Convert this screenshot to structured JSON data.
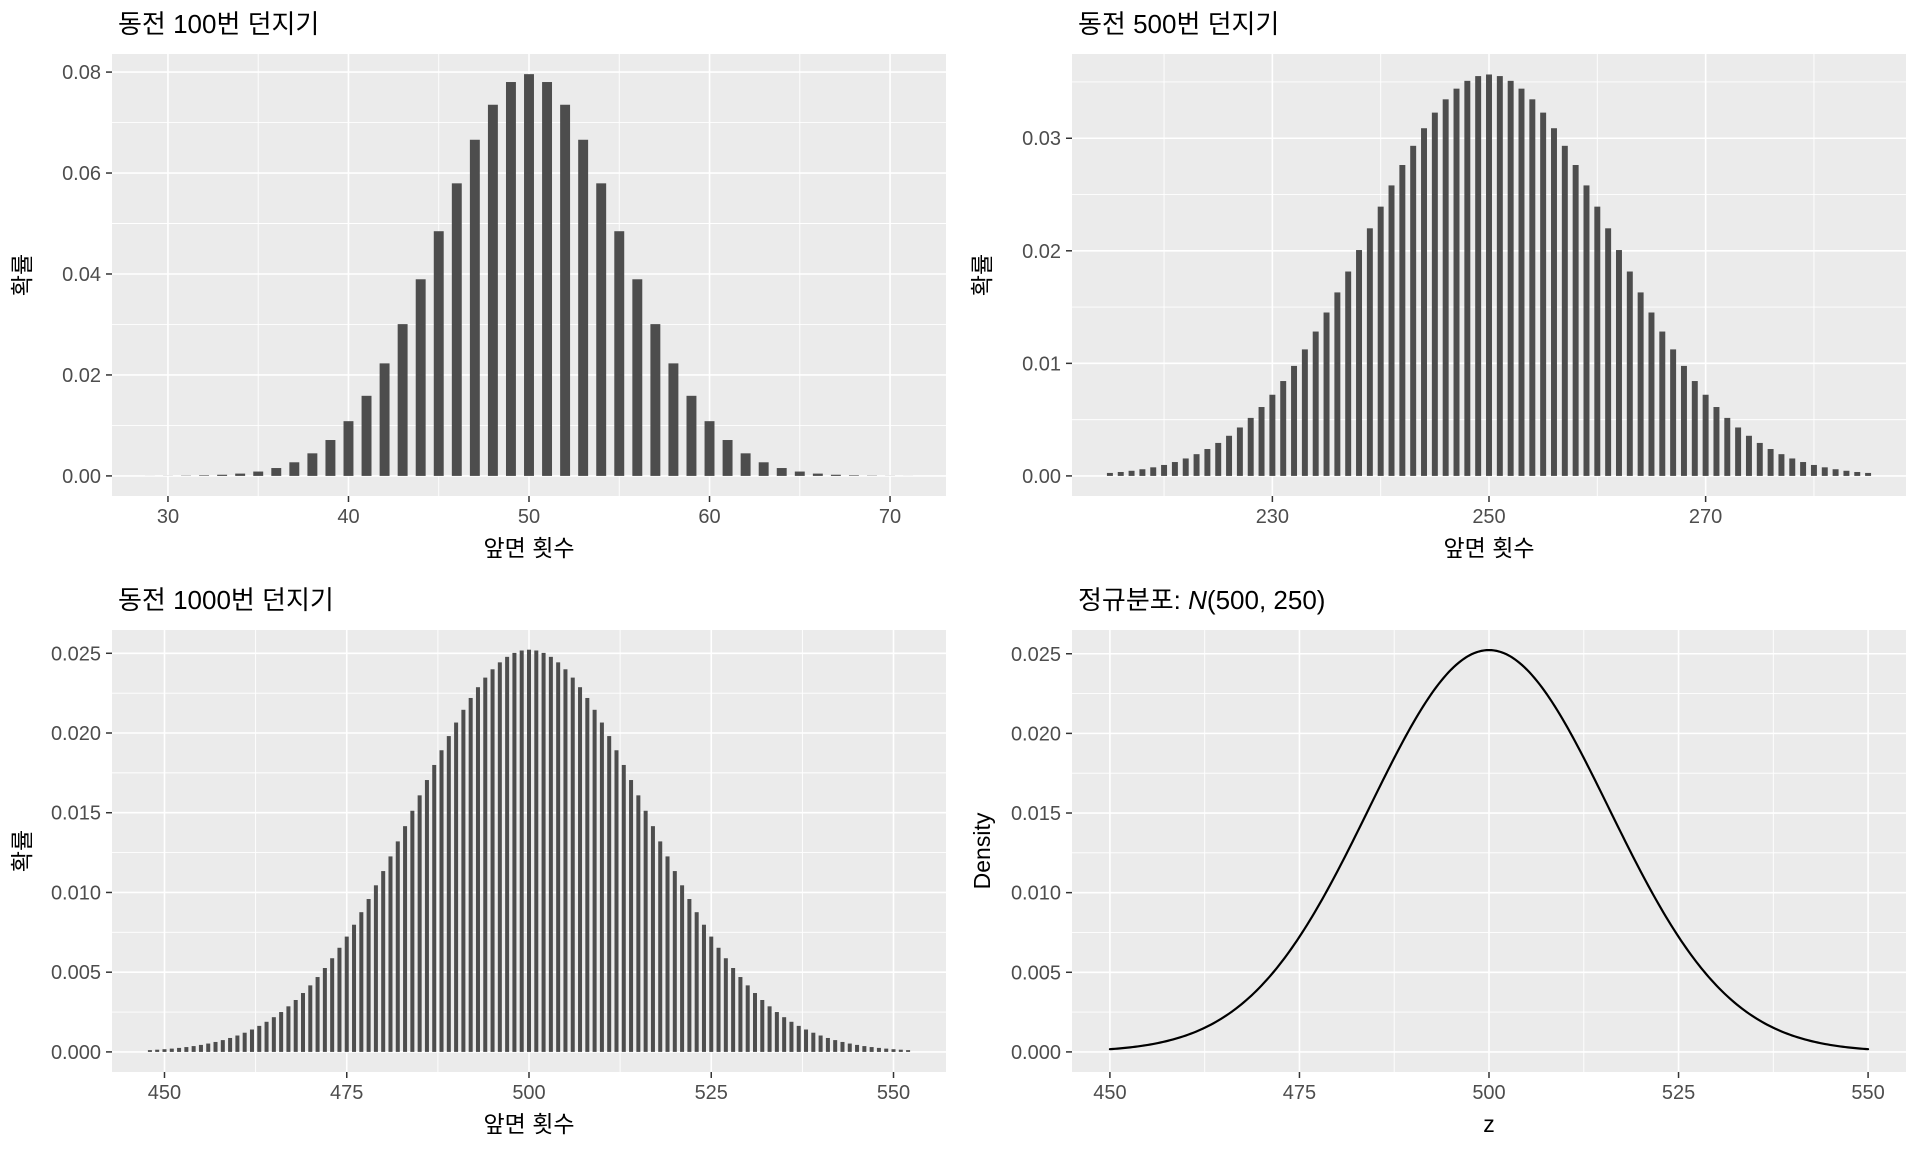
{
  "page": {
    "background": "#FFFFFF"
  },
  "style": {
    "panel_bg": "#EBEBEB",
    "grid_major": "#FFFFFF",
    "grid_minor": "#FFFFFF",
    "bar_fill": "#4D4D4D",
    "line_color": "#000000",
    "tick_mark_color": "#333333",
    "tick_label_color": "#4D4D4D",
    "title_color": "#000000",
    "axis_label_color": "#000000"
  },
  "chart_data": [
    {
      "id": "coin-100",
      "type": "bar",
      "title": "동전 100번 던지기",
      "title_segments": [
        {
          "text": "동전 100번 던지기",
          "italic": false
        }
      ],
      "xlabel": "앞면 횟수",
      "ylabel": "확률",
      "distribution": {
        "kind": "binomial",
        "n": 100,
        "p": 0.5
      },
      "x_data_range": [
        29,
        71
      ],
      "x_ticks": [
        30,
        40,
        50,
        60,
        70
      ],
      "y_ticks": [
        0,
        0.02,
        0.04,
        0.06,
        0.08
      ],
      "y_tick_decimals": 2,
      "y_max_data": 0.0796,
      "peak": {
        "x": 50,
        "y": 0.0796
      },
      "grid": true,
      "legend": "none"
    },
    {
      "id": "coin-500",
      "type": "bar",
      "title": "동전 500번 던지기",
      "title_segments": [
        {
          "text": "동전 500번 던지기",
          "italic": false
        }
      ],
      "xlabel": "앞면 횟수",
      "ylabel": "확률",
      "distribution": {
        "kind": "binomial",
        "n": 500,
        "p": 0.5
      },
      "x_data_range": [
        215,
        285
      ],
      "x_ticks": [
        230,
        250,
        270
      ],
      "y_ticks": [
        0,
        0.01,
        0.02,
        0.03
      ],
      "y_tick_decimals": 2,
      "y_max_data": 0.0357,
      "peak": {
        "x": 250,
        "y": 0.0357
      },
      "grid": true,
      "legend": "none"
    },
    {
      "id": "coin-1000",
      "type": "bar",
      "title": "동전 1000번 던지기",
      "title_segments": [
        {
          "text": "동전 1000번 던지기",
          "italic": false
        }
      ],
      "xlabel": "앞면 횟수",
      "ylabel": "확률",
      "distribution": {
        "kind": "binomial",
        "n": 1000,
        "p": 0.5
      },
      "x_data_range": [
        448,
        552
      ],
      "x_ticks": [
        450,
        475,
        500,
        525,
        550
      ],
      "y_ticks": [
        0,
        0.005,
        0.01,
        0.015,
        0.02,
        0.025
      ],
      "y_tick_decimals": 3,
      "y_max_data": 0.0252,
      "peak": {
        "x": 500,
        "y": 0.0252
      },
      "grid": true,
      "legend": "none"
    },
    {
      "id": "normal",
      "type": "line",
      "title": "정규분포: N(500, 250)",
      "title_segments": [
        {
          "text": "정규분포: ",
          "italic": false
        },
        {
          "text": "N",
          "italic": true
        },
        {
          "text": "(500, 250)",
          "italic": false
        }
      ],
      "xlabel": "z",
      "ylabel": "Density",
      "distribution": {
        "kind": "normal",
        "mean": 500,
        "variance": 250
      },
      "x_data_range": [
        450,
        550
      ],
      "x_ticks": [
        450,
        475,
        500,
        525,
        550
      ],
      "y_ticks": [
        0,
        0.005,
        0.01,
        0.015,
        0.02,
        0.025
      ],
      "y_tick_decimals": 3,
      "y_max_data": 0.02523,
      "peak": {
        "x": 500,
        "y": 0.02523
      },
      "grid": true,
      "legend": "none"
    }
  ]
}
